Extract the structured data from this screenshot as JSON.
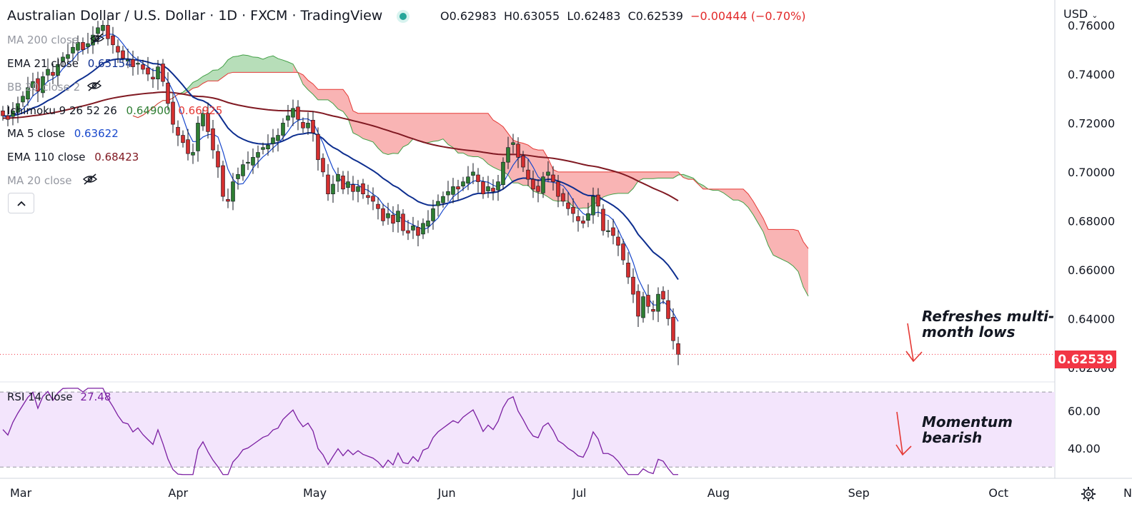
{
  "header": {
    "title": "Australian Dollar / U.S. Dollar · 1D · FXCM · TradingView",
    "status_dot_color": "#26a69a",
    "ohlc": {
      "open": "O0.62983",
      "high": "H0.63055",
      "low": "L0.62483",
      "close": "C0.62539",
      "change": "−0.00444 (−0.70%)"
    }
  },
  "indicators": {
    "ma200": {
      "label": "MA 200 close",
      "hidden": true
    },
    "ema21": {
      "label": "EMA 21 close",
      "value": "0.65154",
      "color": "#0d2e8f"
    },
    "bb": {
      "label": "BB 20 close 2",
      "hidden": true
    },
    "ichimoku": {
      "label": "Ichimoku 9 26 52 26",
      "value_a": "0.64900",
      "value_b": "0.66925",
      "color_a": "#388e3c",
      "color_b": "#e53935"
    },
    "ma5": {
      "label": "MA 5 close",
      "value": "0.63622",
      "color": "#1848cc"
    },
    "ema110": {
      "label": "EMA 110 close",
      "value": "0.68423",
      "color": "#801922"
    },
    "ma20": {
      "label": "MA 20 close",
      "hidden": true
    }
  },
  "price_scale": {
    "currency": "USD",
    "ticks": [
      "0.76000",
      "0.74000",
      "0.72000",
      "0.70000",
      "0.68000",
      "0.66000",
      "0.64000",
      "0.62000"
    ],
    "last_price": "0.62539",
    "last_price_color": "#f23645"
  },
  "rsi": {
    "label": "RSI 14 close",
    "value": "27.48",
    "color": "#7b1fa2",
    "band_color": "#f3e5fc",
    "ticks": [
      "60.00",
      "40.00"
    ]
  },
  "time_axis": [
    "Mar",
    "Apr",
    "May",
    "Jun",
    "Jul",
    "Aug",
    "Sep",
    "Oct",
    "Nov"
  ],
  "annotations": {
    "price_note": [
      "Refreshes multi-",
      "month lows"
    ],
    "rsi_note": [
      "Momentum",
      "bearish"
    ],
    "arrow_color": "#e53935"
  },
  "chart_data": {
    "type": "candlestick",
    "symbol": "AUDUSD",
    "timeframe": "1D",
    "x_range": [
      "Mar",
      "Nov"
    ],
    "price_ylim": [
      0.615,
      0.768
    ],
    "rsi_ylim": [
      24,
      75
    ],
    "closes": [
      0.723,
      0.7215,
      0.725,
      0.728,
      0.731,
      0.7345,
      0.737,
      0.733,
      0.739,
      0.742,
      0.7395,
      0.744,
      0.747,
      0.748,
      0.751,
      0.753,
      0.75,
      0.7525,
      0.756,
      0.759,
      0.76,
      0.7545,
      0.752,
      0.749,
      0.7465,
      0.746,
      0.743,
      0.7445,
      0.742,
      0.74,
      0.738,
      0.743,
      0.737,
      0.728,
      0.7195,
      0.715,
      0.712,
      0.7075,
      0.708,
      0.72,
      0.724,
      0.7165,
      0.709,
      0.702,
      0.69,
      0.688,
      0.696,
      0.699,
      0.703,
      0.704,
      0.706,
      0.708,
      0.71,
      0.711,
      0.714,
      0.715,
      0.72,
      0.723,
      0.726,
      0.7215,
      0.718,
      0.72,
      0.716,
      0.705,
      0.7,
      0.691,
      0.695,
      0.699,
      0.693,
      0.696,
      0.692,
      0.694,
      0.691,
      0.6895,
      0.688,
      0.685,
      0.68,
      0.683,
      0.679,
      0.684,
      0.676,
      0.675,
      0.678,
      0.674,
      0.679,
      0.68,
      0.685,
      0.688,
      0.69,
      0.692,
      0.694,
      0.693,
      0.696,
      0.698,
      0.7,
      0.696,
      0.691,
      0.694,
      0.692,
      0.696,
      0.704,
      0.71,
      0.712,
      0.706,
      0.702,
      0.697,
      0.693,
      0.692,
      0.698,
      0.7,
      0.696,
      0.69,
      0.688,
      0.685,
      0.683,
      0.68,
      0.679,
      0.683,
      0.69,
      0.686,
      0.676,
      0.676,
      0.674,
      0.67,
      0.664,
      0.657,
      0.65,
      0.641,
      0.649,
      0.645,
      0.643,
      0.65,
      0.648,
      0.64,
      0.631,
      0.6254
    ],
    "ema21_end": 0.65154,
    "ma5_end": 0.63622,
    "ema110_end": 0.68423,
    "ichimoku_span_a_end": 0.649,
    "ichimoku_span_b_end": 0.66925,
    "rsi_end": 27.48
  }
}
